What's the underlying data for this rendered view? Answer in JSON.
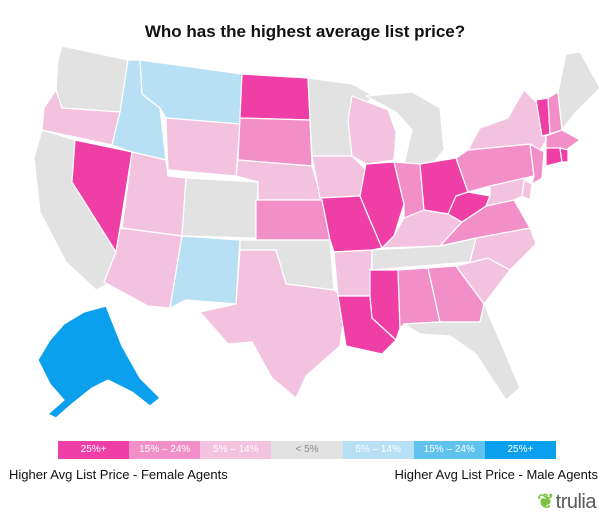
{
  "title": "Who has the highest average list price?",
  "colors": {
    "f25": "#f03ea7",
    "f15": "#f28fc8",
    "f5": "#f3c2de",
    "neutral": "#e2e2e2",
    "m5": "#b8e0f5",
    "m15": "#5fc3ee",
    "m25": "#0aa0ee"
  },
  "legend": [
    {
      "key": "f25",
      "label": "25%+"
    },
    {
      "key": "f15",
      "label": "15% – 24%"
    },
    {
      "key": "f5",
      "label": "5% – 14%"
    },
    {
      "key": "neutral",
      "label": "< 5%"
    },
    {
      "key": "m5",
      "label": "5% – 14%"
    },
    {
      "key": "m15",
      "label": "15% – 24%"
    },
    {
      "key": "m25",
      "label": "25%+"
    }
  ],
  "captions": {
    "left": "Higher Avg List Price - Female Agents",
    "right": "Higher Avg List Price - Male Agents"
  },
  "brand": {
    "icon": "leaf-icon",
    "name": "trulia"
  },
  "states": {
    "WA": "neutral",
    "OR": "f5",
    "CA": "neutral",
    "NV": "f25",
    "ID": "m5",
    "MT": "m5",
    "WY": "f5",
    "UT": "f5",
    "AZ": "f5",
    "CO": "neutral",
    "NM": "m5",
    "ND": "f25",
    "SD": "f15",
    "NE": "f5",
    "KS": "f15",
    "OK": "neutral",
    "TX": "f5",
    "MN": "neutral",
    "IA": "f5",
    "MO": "f25",
    "AR": "f5",
    "LA": "f25",
    "WI": "f5",
    "IL": "f25",
    "MI": "neutral",
    "IN": "f15",
    "OH": "f25",
    "KY": "f5",
    "TN": "neutral",
    "MS": "f25",
    "AL": "f15",
    "GA": "f15",
    "FL": "neutral",
    "SC": "f5",
    "NC": "f5",
    "VA": "f15",
    "WV": "f25",
    "PA": "f15",
    "NY": "f5",
    "VT": "f25",
    "NH": "f15",
    "ME": "neutral",
    "MA": "f15",
    "CT": "f25",
    "RI": "f25",
    "NJ": "f15",
    "DE": "f5",
    "MD": "f5",
    "AK": "m25"
  }
}
